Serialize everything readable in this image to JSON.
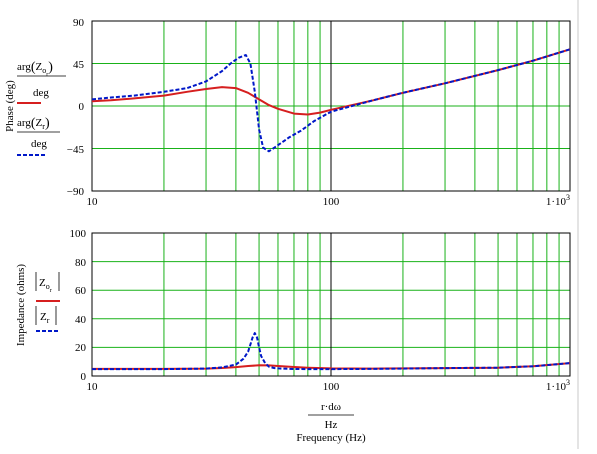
{
  "colors": {
    "grid": "#19b219",
    "frame": "#000000",
    "unity_line": "#000000",
    "series_a": "#d61f1f",
    "series_b": "#0018c8",
    "right_border": "#c8c8c8"
  },
  "chart_data": [
    {
      "type": "line",
      "xscale": "log",
      "xlim": [
        10,
        1000
      ],
      "ylim": [
        -90,
        90
      ],
      "yticks": [
        "90",
        "45",
        "0",
        "−45",
        "−90"
      ],
      "ytick_values": [
        90,
        45,
        0,
        -45,
        -90
      ],
      "xticks": [
        "10",
        "100",
        "1·10"
      ],
      "xtick_values": [
        10,
        100,
        1000
      ],
      "xtick_exponent": "3",
      "ylabel": "Phase (deg)",
      "grid": true,
      "legend": [
        {
          "num_func": "arg",
          "var": "Z",
          "sub": "o",
          "subsub": "r",
          "den": "deg",
          "style": "solid"
        },
        {
          "num_func": "arg",
          "var": "Z",
          "sub": "r",
          "subsub": "",
          "den": "deg",
          "style": "dashed"
        }
      ],
      "series": [
        {
          "style": "solid",
          "x": [
            10,
            12,
            15,
            20,
            25,
            30,
            35,
            40,
            45,
            50,
            55,
            60,
            70,
            80,
            90,
            100,
            150,
            200,
            300,
            500,
            700,
            1000
          ],
          "y": [
            5,
            6,
            8,
            11,
            15,
            18,
            20,
            19,
            14,
            7,
            1,
            -3,
            -8,
            -9,
            -7,
            -4,
            6,
            14,
            24,
            38,
            48,
            60
          ]
        },
        {
          "style": "dashed",
          "x": [
            10,
            12,
            15,
            20,
            25,
            30,
            35,
            38,
            41,
            44,
            46,
            48,
            50,
            52,
            55,
            58,
            62,
            67,
            75,
            85,
            100,
            150,
            200,
            300,
            500,
            700,
            1000
          ],
          "y": [
            7,
            9,
            11,
            15,
            19,
            26,
            37,
            45,
            51,
            54,
            45,
            15,
            -25,
            -44,
            -48,
            -44,
            -39,
            -33,
            -26,
            -16,
            -6,
            6,
            14,
            24,
            38,
            48,
            60
          ]
        }
      ]
    },
    {
      "type": "line",
      "xscale": "log",
      "xlim": [
        10,
        1000
      ],
      "ylim": [
        0,
        100
      ],
      "yticks": [
        "100",
        "80",
        "60",
        "40",
        "20",
        "0"
      ],
      "ytick_values": [
        100,
        80,
        60,
        40,
        20,
        0
      ],
      "xticks": [
        "10",
        "100",
        "1·10"
      ],
      "xtick_values": [
        10,
        100,
        1000
      ],
      "xtick_exponent": "3",
      "ylabel": "Impedance (ohms)",
      "xlabel_num": "r·dω",
      "xlabel_den": "Hz",
      "xlabel": "Frequency (Hz)",
      "grid": true,
      "legend": [
        {
          "var": "Z",
          "sub": "o",
          "subsub": "r",
          "style": "solid"
        },
        {
          "var": "Z",
          "sub": "r",
          "subsub": "",
          "style": "dashed"
        }
      ],
      "series": [
        {
          "style": "solid",
          "x": [
            10,
            20,
            30,
            35,
            40,
            45,
            50,
            55,
            60,
            70,
            80,
            100,
            150,
            200,
            300,
            500,
            700,
            1000
          ],
          "y": [
            5,
            5,
            5.2,
            5.6,
            6.2,
            7,
            7.5,
            7.4,
            7,
            6.3,
            5.8,
            5.3,
            5.2,
            5.3,
            5.5,
            5.8,
            6.8,
            9
          ]
        },
        {
          "style": "dashed",
          "x": [
            10,
            20,
            30,
            35,
            40,
            43,
            45,
            46,
            47,
            48,
            49,
            50,
            51,
            53,
            55,
            58,
            62,
            70,
            80,
            100,
            150,
            200,
            300,
            500,
            700,
            1000
          ],
          "y": [
            4.8,
            4.8,
            5.2,
            6,
            8,
            12,
            17,
            22,
            27,
            30,
            27,
            20,
            14,
            9,
            6.5,
            5.5,
            5.2,
            4.9,
            4.8,
            4.8,
            5,
            5.2,
            5.5,
            5.8,
            6.8,
            9
          ]
        }
      ]
    }
  ]
}
